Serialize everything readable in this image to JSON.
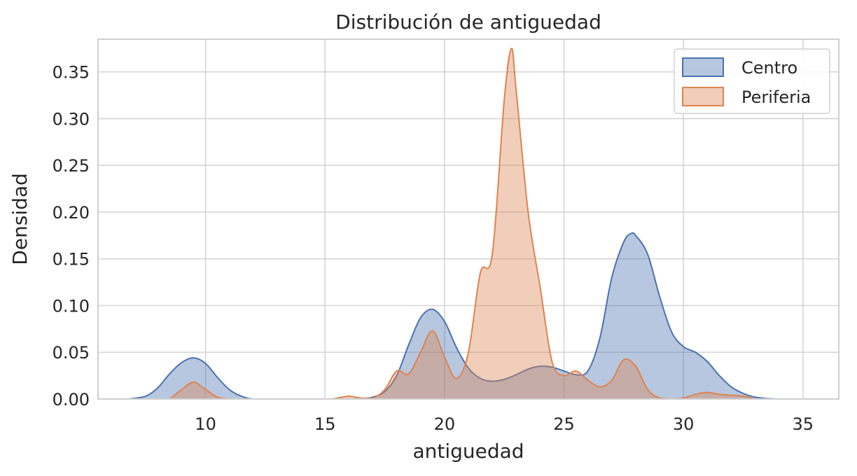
{
  "chart_data": {
    "type": "area",
    "title": "Distribución de antiguedad",
    "xlabel": "antiguedad",
    "ylabel": "Densidad",
    "xlim": [
      5.5,
      36.5
    ],
    "ylim": [
      0,
      0.385
    ],
    "xticks": [
      10,
      15,
      20,
      25,
      30,
      35
    ],
    "xtick_labels": [
      "10",
      "15",
      "20",
      "25",
      "30",
      "35"
    ],
    "yticks": [
      0,
      0.05,
      0.1,
      0.15,
      0.2,
      0.25,
      0.3,
      0.35
    ],
    "ytick_labels": [
      "0.00",
      "0.05",
      "0.10",
      "0.15",
      "0.20",
      "0.25",
      "0.30",
      "0.35"
    ],
    "grid": true,
    "legend_position": "top-right",
    "series": [
      {
        "name": "Centro",
        "color": "#4c72b0",
        "x": [
          6.8,
          7.5,
          8.0,
          8.5,
          9.0,
          9.5,
          10.0,
          10.5,
          11.0,
          11.5,
          12.0,
          13.0,
          14.0,
          15.0,
          16.0,
          16.5,
          17.0,
          17.5,
          18.0,
          18.5,
          19.0,
          19.5,
          20.0,
          20.5,
          21.0,
          21.5,
          22.0,
          22.5,
          23.0,
          23.5,
          24.0,
          24.5,
          25.0,
          25.5,
          26.0,
          26.5,
          27.0,
          27.5,
          27.8,
          28.0,
          28.5,
          29.0,
          29.5,
          30.0,
          30.5,
          31.0,
          31.5,
          32.0,
          32.5,
          33.0,
          33.5,
          34.0
        ],
        "y": [
          0.0,
          0.003,
          0.012,
          0.027,
          0.039,
          0.044,
          0.038,
          0.023,
          0.01,
          0.003,
          0.0,
          0.0,
          0.0,
          0.0,
          0.0,
          0.0002,
          0.002,
          0.008,
          0.025,
          0.058,
          0.087,
          0.096,
          0.083,
          0.055,
          0.033,
          0.022,
          0.019,
          0.021,
          0.026,
          0.032,
          0.035,
          0.034,
          0.03,
          0.026,
          0.03,
          0.065,
          0.13,
          0.168,
          0.177,
          0.175,
          0.155,
          0.11,
          0.072,
          0.056,
          0.05,
          0.04,
          0.025,
          0.013,
          0.006,
          0.002,
          0.0005,
          0.0
        ]
      },
      {
        "name": "Periferia",
        "color": "#dd8452",
        "x": [
          8.5,
          9.0,
          9.5,
          10.0,
          10.5,
          11.0,
          12.0,
          15.0,
          15.5,
          16.0,
          16.5,
          17.0,
          17.5,
          18.0,
          18.5,
          19.0,
          19.5,
          20.0,
          20.5,
          21.0,
          21.5,
          22.0,
          22.5,
          22.8,
          23.0,
          23.5,
          24.0,
          24.5,
          25.0,
          25.5,
          26.0,
          26.5,
          27.0,
          27.5,
          28.0,
          28.5,
          29.0,
          29.5,
          30.0,
          30.5,
          31.0,
          31.5,
          32.0,
          32.5,
          33.0
        ],
        "y": [
          0.0,
          0.01,
          0.018,
          0.01,
          0.002,
          0.0,
          0.0,
          0.0,
          0.001,
          0.003,
          0.001,
          0.001,
          0.01,
          0.03,
          0.027,
          0.05,
          0.073,
          0.045,
          0.022,
          0.05,
          0.135,
          0.155,
          0.32,
          0.375,
          0.33,
          0.2,
          0.12,
          0.04,
          0.025,
          0.03,
          0.02,
          0.013,
          0.02,
          0.042,
          0.035,
          0.01,
          0.001,
          0.0,
          0.001,
          0.005,
          0.007,
          0.005,
          0.004,
          0.003,
          0.0
        ]
      }
    ]
  }
}
